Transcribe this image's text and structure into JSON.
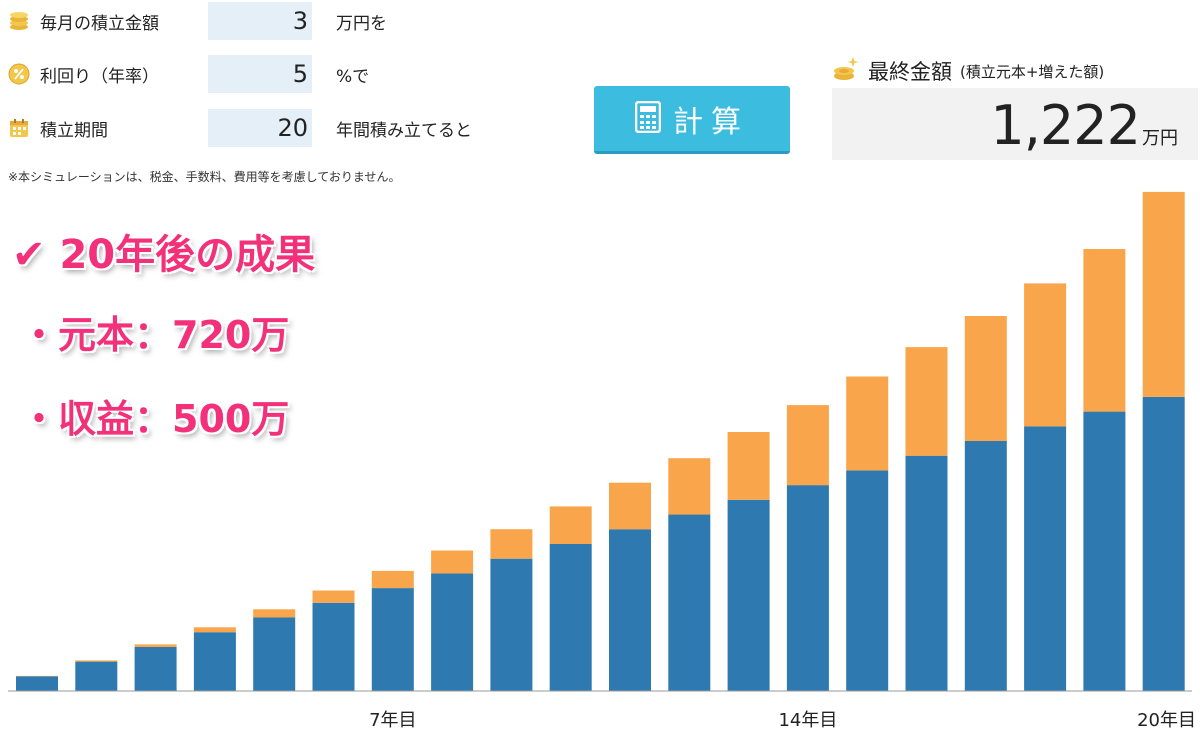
{
  "form": {
    "monthly": {
      "label": "毎月の積立金額",
      "value": "3",
      "suffix": "万円を",
      "icon": "coin-stack-icon"
    },
    "rate": {
      "label": "利回り（年率）",
      "value": "5",
      "suffix": "%で",
      "icon": "percent-coin-icon"
    },
    "period": {
      "label": "積立期間",
      "value": "20",
      "suffix": "年間積み立てると",
      "icon": "calendar-icon"
    },
    "note": "※本シミュレーションは、税金、手数料、費用等を考慮しておりません。"
  },
  "calc_button": {
    "label": "計算",
    "icon": "calculator-icon"
  },
  "result": {
    "title": "最終金額",
    "subtitle": "(積立元本+増えた額)",
    "amount": "1,222",
    "unit": "万円",
    "icon": "sparkle-coin-icon"
  },
  "headline": {
    "line1": "✔ 20年後の成果",
    "line2": "・元本：720万",
    "line3": "・収益：500万"
  },
  "colors": {
    "principal": "#2e7ab0",
    "gain": "#f9a54b",
    "button": "#3cbde0",
    "headline": "#f2317a",
    "field": "#e4eff7"
  },
  "chart_data": {
    "type": "bar",
    "stacked": true,
    "categories": [
      "1",
      "2",
      "3",
      "4",
      "5",
      "6",
      "7",
      "8",
      "9",
      "10",
      "11",
      "12",
      "13",
      "14",
      "15",
      "16",
      "17",
      "18",
      "19",
      "20"
    ],
    "tick_labels": [
      {
        "index": 6,
        "label": "7年目"
      },
      {
        "index": 13,
        "label": "14年目"
      },
      {
        "index": 19,
        "label": "20年目"
      }
    ],
    "series": [
      {
        "values": [
          36,
          72,
          108,
          144,
          180,
          216,
          252,
          288,
          324,
          360,
          396,
          432,
          468,
          504,
          540,
          576,
          612,
          648,
          684,
          720
        ]
      },
      {
        "values": [
          1,
          3,
          6,
          12,
          20,
          30,
          42,
          56,
          72,
          92,
          114,
          138,
          166,
          196,
          230,
          266,
          306,
          350,
          398,
          502
        ]
      }
    ],
    "ylim": [
      0,
      1300
    ],
    "grid": false,
    "xlabel": "",
    "ylabel": ""
  }
}
